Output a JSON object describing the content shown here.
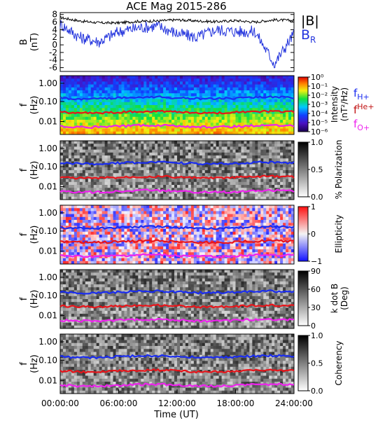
{
  "title": "ACE Mag 2015-286",
  "time_axis": {
    "label": "Time (UT)",
    "ticks": [
      "00:00:00",
      "06:00:00",
      "12:00:00",
      "18:00:00",
      "24:00:00"
    ]
  },
  "colors": {
    "bmag": "#000000",
    "br": "#2233dd",
    "fH": "#1a2cf0",
    "fHe": "#e8141a",
    "fO": "#ee22ee"
  },
  "chart_data": [
    {
      "type": "line",
      "ylabel": "B",
      "yunit": "(nT)",
      "ylim": [
        -7,
        8.5
      ],
      "yticks": [
        "8",
        "6",
        "4",
        "2",
        "0",
        "-2",
        "-4",
        "-6"
      ],
      "ytick_values": [
        8,
        6,
        4,
        2,
        0,
        -2,
        -4,
        -6
      ],
      "x": [
        0,
        2,
        4,
        6,
        8,
        10,
        12,
        14,
        16,
        18,
        20,
        22,
        24
      ],
      "series": [
        {
          "name": "|B|",
          "values": [
            7.2,
            6.3,
            5.8,
            5.8,
            6.2,
            6.3,
            6.6,
            6.3,
            6.1,
            6.4,
            6.0,
            6.6,
            6.4
          ]
        },
        {
          "name": "BR",
          "name_sub": "R",
          "values": [
            5.5,
            2.0,
            0.8,
            3.5,
            4.5,
            5.0,
            3.0,
            2.0,
            4.0,
            3.5,
            3.5,
            -5.0,
            3.0
          ]
        }
      ],
      "legend": [
        {
          "text": "|B|",
          "sub": ""
        },
        {
          "text": "B",
          "sub": "R"
        }
      ]
    },
    {
      "type": "heatmap",
      "ylabel": "f",
      "yunit": "(Hz)",
      "yticks": [
        "1.00",
        "0.10",
        "0.01"
      ],
      "colorbar": {
        "label": "Intensity",
        "unit_label": "(nT²/Hz)",
        "ticks": [
          "10⁰",
          "10⁻¹",
          "10⁻²",
          "10⁻³",
          "10⁻⁴",
          "10⁻⁵",
          "10⁻⁶"
        ]
      },
      "gyro_legend": [
        {
          "text": "f",
          "sub": "H+"
        },
        {
          "text": "f",
          "sub": "He+"
        },
        {
          "text": "f",
          "sub": "O+"
        }
      ]
    },
    {
      "type": "heatmap",
      "ylabel": "f",
      "yunit": "(Hz)",
      "yticks": [
        "1.00",
        "0.10",
        "0.01"
      ],
      "colorbar": {
        "label": "% Polarization",
        "ticks": [
          "1.0",
          "0.5",
          "0.0"
        ]
      }
    },
    {
      "type": "heatmap",
      "ylabel": "f",
      "yunit": "(Hz)",
      "yticks": [
        "1.00",
        "0.10",
        "0.01"
      ],
      "colorbar": {
        "label": "Ellipticity",
        "ticks": [
          "1",
          "0",
          "−1"
        ]
      }
    },
    {
      "type": "heatmap",
      "ylabel": "f",
      "yunit": "(Hz)",
      "yticks": [
        "1.00",
        "0.10",
        "0.01"
      ],
      "colorbar": {
        "label": "k dot B",
        "unit_label": "(Deg)",
        "ticks": [
          "90",
          "60",
          "30",
          "0"
        ]
      }
    },
    {
      "type": "heatmap",
      "ylabel": "f",
      "yunit": "(Hz)",
      "yticks": [
        "1.00",
        "0.10",
        "0.01"
      ],
      "colorbar": {
        "label": "Coherency",
        "ticks": [
          "1.0",
          "0.5",
          "0.0"
        ]
      }
    }
  ]
}
